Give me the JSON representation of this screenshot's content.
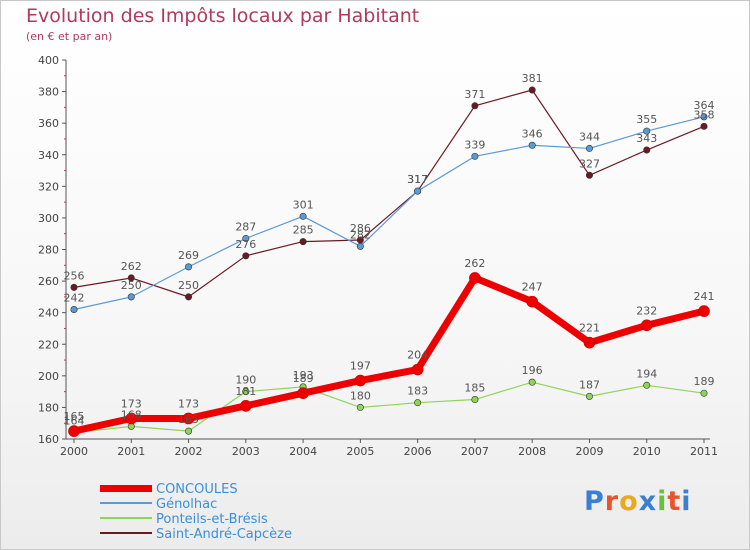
{
  "header": {
    "title": "Evolution des Impôts locaux par Habitant",
    "subtitle": "(en € et par an)"
  },
  "logo": {
    "letters": [
      "P",
      "r",
      "o",
      "x",
      "i",
      "t",
      "i"
    ],
    "colors": [
      "#3a7fd0",
      "#e8542c",
      "#e8a91c",
      "#3a7fd0",
      "#6cbf3a",
      "#e8542c",
      "#3a7fd0"
    ]
  },
  "chart_data": {
    "type": "line",
    "x": [
      "2000",
      "2001",
      "2002",
      "2003",
      "2004",
      "2005",
      "2006",
      "2007",
      "2008",
      "2009",
      "2010",
      "2011"
    ],
    "ylim": [
      160,
      400
    ],
    "yticks": [
      160,
      180,
      200,
      220,
      240,
      260,
      280,
      300,
      320,
      340,
      360,
      380,
      400
    ],
    "grid": false,
    "legend_position": "bottom-left",
    "series": [
      {
        "name": "Saint-André-Capcèze",
        "color": "#6b1a24",
        "width": 1.2,
        "values": [
          256,
          262,
          250,
          276,
          285,
          286,
          317,
          371,
          381,
          327,
          343,
          358
        ],
        "labels": [
          "256",
          "262",
          "250",
          "276",
          "285",
          "286",
          "317",
          "371",
          "381",
          "327",
          "343",
          "358"
        ]
      },
      {
        "name": "Génolhac",
        "color": "#5b9bd5",
        "width": 1.2,
        "values": [
          242,
          250,
          269,
          287,
          301,
          282,
          317,
          339,
          346,
          344,
          355,
          364
        ],
        "labels": [
          "242",
          "250",
          "269",
          "287",
          "301",
          "282",
          "317",
          "339",
          "346",
          "344",
          "355",
          "364"
        ]
      },
      {
        "name": "Ponteils-et-Brésis",
        "color": "#8fd45a",
        "width": 1.2,
        "values": [
          164,
          168,
          165,
          190,
          193,
          180,
          183,
          185,
          196,
          187,
          194,
          189
        ],
        "labels": [
          "164",
          "168",
          "165",
          "190",
          "193",
          "180",
          "183",
          "185",
          "196",
          "187",
          "194",
          "189"
        ]
      },
      {
        "name": "CONCOULES",
        "color": "#ee0000",
        "width": 7,
        "values": [
          165,
          173,
          173,
          181,
          189,
          197,
          204,
          262,
          247,
          221,
          232,
          241
        ],
        "labels": [
          "165",
          "173",
          "173",
          "181",
          "189",
          "197",
          "204",
          "262",
          "247",
          "221",
          "232",
          "241"
        ]
      }
    ],
    "legend": [
      {
        "name": "CONCOULES",
        "color": "#ee0000",
        "width": 7
      },
      {
        "name": "Génolhac",
        "color": "#5b9bd5",
        "width": 1.5
      },
      {
        "name": "Ponteils-et-Brésis",
        "color": "#8fd45a",
        "width": 1.5
      },
      {
        "name": "Saint-André-Capcèze",
        "color": "#6b1a24",
        "width": 1.5
      }
    ]
  }
}
